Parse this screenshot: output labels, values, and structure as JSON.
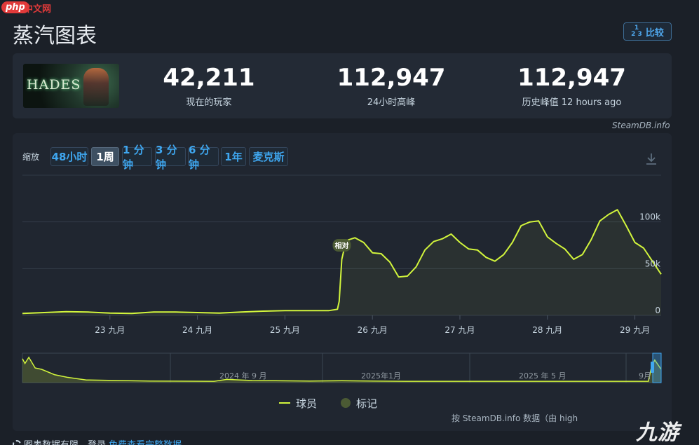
{
  "overlay": {
    "php_badge": "php",
    "php_site": "中文网",
    "watermark": "九游"
  },
  "header": {
    "title": "蒸汽图表",
    "compare_label": "比较",
    "compare_icon": "1 2 3"
  },
  "stats": {
    "game_logo_text": "HADES",
    "current": {
      "value": "42,211",
      "label": "现在的玩家"
    },
    "peak_24h": {
      "value": "112,947",
      "label": "24小时高峰"
    },
    "all_time": {
      "value": "112,947",
      "label": "历史峰值 12 hours ago"
    }
  },
  "source": "SteamDB.info",
  "zoom": {
    "label": "缩放",
    "buttons": [
      "48小时",
      "1周",
      "1 分钟",
      "3 分钟",
      "6 分钟",
      "1年",
      "麦克斯"
    ],
    "active_index": 1
  },
  "chart_data": {
    "type": "line",
    "series": [
      {
        "name": "球员",
        "color": "#d2f53c",
        "x": [
          22.0,
          22.25,
          22.5,
          22.75,
          23.0,
          23.25,
          23.5,
          23.75,
          24.0,
          24.25,
          24.5,
          24.75,
          25.0,
          25.25,
          25.5,
          25.6,
          25.62,
          25.65,
          25.7,
          25.8,
          25.9,
          26.0,
          26.1,
          26.2,
          26.3,
          26.4,
          26.5,
          26.6,
          26.7,
          26.8,
          26.9,
          27.0,
          27.1,
          27.2,
          27.3,
          27.4,
          27.5,
          27.6,
          27.7,
          27.8,
          27.9,
          28.0,
          28.1,
          28.2,
          28.3,
          28.4,
          28.5,
          28.6,
          28.7,
          28.8,
          28.9,
          29.0,
          29.1,
          29.2,
          29.3
        ],
        "values": [
          2000,
          3000,
          4000,
          3500,
          2500,
          2000,
          3500,
          3500,
          3000,
          2500,
          3500,
          4500,
          5000,
          5000,
          5000,
          6500,
          15000,
          60000,
          80000,
          83000,
          78000,
          67000,
          66000,
          57000,
          41000,
          42000,
          52000,
          70000,
          79000,
          82000,
          87000,
          78000,
          71000,
          70000,
          62000,
          58000,
          65000,
          78000,
          96000,
          100000,
          101000,
          84000,
          77000,
          71000,
          60000,
          65000,
          81000,
          101000,
          108000,
          113000,
          96000,
          78000,
          72000,
          58000,
          44000
        ]
      }
    ],
    "x_ticks": [
      "23 九月",
      "24 九月",
      "25 九月",
      "26 九月",
      "27 九月",
      "28 九月",
      "29 九月"
    ],
    "y_ticks": [
      "0",
      "50k",
      "100k"
    ],
    "ylim": [
      0,
      150000
    ],
    "annotation": {
      "label": "相对"
    },
    "navigator": {
      "labels": [
        "2024 年 9 月",
        "2025年1月",
        "2025 年 5 月",
        "9月"
      ]
    },
    "legend": {
      "series_label": "球员",
      "marker_label": "标记"
    },
    "grid": true
  },
  "credit": "按 SteamDB.info 数据（由 high",
  "footer": {
    "note": "图表数据有限，登录",
    "link": "免费查看完整数据"
  }
}
